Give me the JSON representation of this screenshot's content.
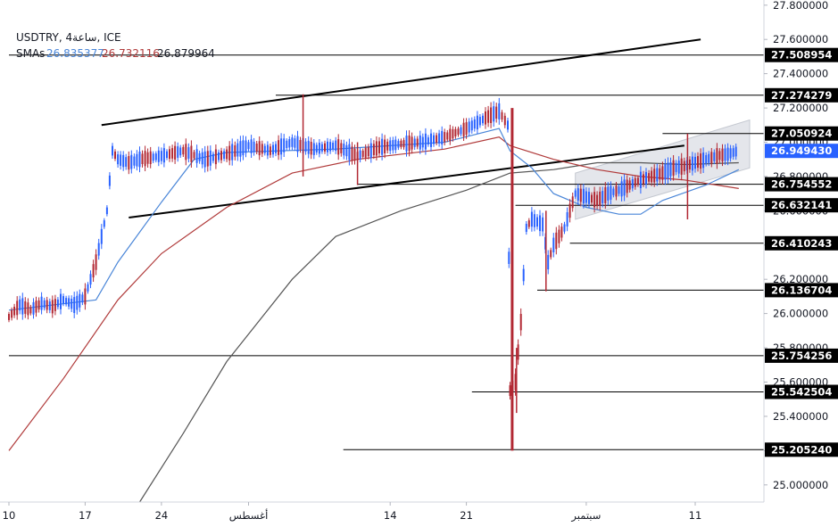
{
  "chart_data": {
    "type": "line",
    "instrument": "USDTRY, 4ساعة, ICE",
    "sma_label": "SMAs",
    "sma_values": [
      {
        "value": "26.835377",
        "color": "#4a86d8"
      },
      {
        "value": "26.732116",
        "color": "#b03a3a"
      },
      {
        "value": "26.879964",
        "color": "#131722"
      }
    ],
    "y_axis": {
      "range": [
        24.9,
        27.83
      ],
      "ticks": [
        "27.800000",
        "27.600000",
        "27.400000",
        "27.200000",
        "27.000000",
        "26.800000",
        "26.600000",
        "26.400000",
        "26.200000",
        "26.000000",
        "25.800000",
        "25.600000",
        "25.400000",
        "25.200000",
        "25.000000"
      ]
    },
    "x_axis": {
      "ticks": [
        {
          "label": "10",
          "t": 0
        },
        {
          "label": "17",
          "t": 7
        },
        {
          "label": "24",
          "t": 14
        },
        {
          "label": "أغسطس",
          "t": 22
        },
        {
          "label": "14",
          "t": 35
        },
        {
          "label": "21",
          "t": 42
        },
        {
          "label": "سبتمبر",
          "t": 53
        },
        {
          "label": "11",
          "t": 63
        }
      ],
      "range": [
        0,
        68
      ]
    },
    "levels": [
      {
        "value": 27.508954,
        "label": "27.508954",
        "from": 0,
        "color": "#000000"
      },
      {
        "value": 27.274279,
        "label": "27.274279",
        "from": 24.5,
        "color": "#000000"
      },
      {
        "value": 27.050924,
        "label": "27.050924",
        "from": 60,
        "color": "#000000"
      },
      {
        "value": 26.94943,
        "label": "26.949430",
        "from": 67,
        "color": "#2962ff"
      },
      {
        "value": 26.754552,
        "label": "26.754552",
        "from": 32,
        "color": "#000000"
      },
      {
        "value": 26.632141,
        "label": "26.632141",
        "from": 46.5,
        "color": "#000000"
      },
      {
        "value": 26.410243,
        "label": "26.410243",
        "from": 51.5,
        "color": "#000000"
      },
      {
        "value": 26.136704,
        "label": "26.136704",
        "from": 48.5,
        "color": "#000000"
      },
      {
        "value": 25.754256,
        "label": "25.754256",
        "from": 0,
        "color": "#000000"
      },
      {
        "value": 25.542504,
        "label": "25.542504",
        "from": 42.5,
        "color": "#000000"
      },
      {
        "value": 25.20524,
        "label": "25.205240",
        "from": 30.7,
        "color": "#000000"
      }
    ],
    "trendlines": [
      {
        "from": [
          8.5,
          27.1
        ],
        "to": [
          63.5,
          27.6
        ],
        "color": "#000000"
      },
      {
        "from": [
          11,
          26.56
        ],
        "to": [
          62,
          26.98
        ],
        "color": "#000000"
      }
    ],
    "channel": {
      "upper": [
        [
          52,
          26.82
        ],
        [
          68,
          27.13
        ]
      ],
      "lower": [
        [
          52,
          26.55
        ],
        [
          68,
          26.85
        ]
      ]
    },
    "price": {
      "color": "#2962ff",
      "down_color": "#b22833",
      "points": [
        [
          0,
          25.98
        ],
        [
          1,
          26.05
        ],
        [
          2,
          26.02
        ],
        [
          3,
          26.06
        ],
        [
          4,
          26.04
        ],
        [
          5,
          26.08
        ],
        [
          6,
          26.05
        ],
        [
          7,
          26.1
        ],
        [
          8,
          26.3
        ],
        [
          9,
          26.6
        ],
        [
          9.5,
          26.95
        ],
        [
          10,
          26.9
        ],
        [
          11,
          26.88
        ],
        [
          12,
          26.9
        ],
        [
          14,
          26.92
        ],
        [
          16,
          26.95
        ],
        [
          18,
          26.9
        ],
        [
          20,
          26.93
        ],
        [
          22,
          26.98
        ],
        [
          24,
          26.95
        ],
        [
          26,
          27.0
        ],
        [
          28,
          26.96
        ],
        [
          30,
          26.98
        ],
        [
          32,
          26.92
        ],
        [
          34,
          26.97
        ],
        [
          36,
          26.99
        ],
        [
          38,
          27.0
        ],
        [
          40,
          27.03
        ],
        [
          42,
          27.08
        ],
        [
          44,
          27.15
        ],
        [
          45,
          27.18
        ],
        [
          45.8,
          27.1
        ],
        [
          46,
          25.55
        ],
        [
          46.5,
          25.6
        ],
        [
          47,
          25.95
        ],
        [
          47.5,
          26.5
        ],
        [
          48,
          26.55
        ],
        [
          49,
          26.52
        ],
        [
          49.5,
          26.3
        ],
        [
          50,
          26.4
        ],
        [
          51,
          26.5
        ],
        [
          52,
          26.7
        ],
        [
          53,
          26.68
        ],
        [
          54,
          26.66
        ],
        [
          55,
          26.7
        ],
        [
          56,
          26.72
        ],
        [
          57,
          26.75
        ],
        [
          58,
          26.78
        ],
        [
          59,
          26.8
        ],
        [
          60,
          26.82
        ],
        [
          61,
          26.85
        ],
        [
          62,
          26.86
        ],
        [
          63,
          26.88
        ],
        [
          64,
          26.9
        ],
        [
          65,
          26.92
        ],
        [
          66,
          26.93
        ],
        [
          67,
          26.95
        ]
      ],
      "spikes": [
        {
          "t": 46.2,
          "high": 27.2,
          "low": 25.2
        },
        {
          "t": 46.6,
          "high": 25.8,
          "low": 25.42
        },
        {
          "t": 49.3,
          "high": 26.6,
          "low": 26.13
        },
        {
          "t": 62.3,
          "high": 27.05,
          "low": 26.55
        },
        {
          "t": 27,
          "high": 27.28,
          "low": 26.8
        },
        {
          "t": 32,
          "high": 27.0,
          "low": 26.75
        }
      ]
    },
    "sma_fast": {
      "color": "#4a86d8",
      "points": [
        [
          0,
          26.02
        ],
        [
          8,
          26.08
        ],
        [
          10,
          26.3
        ],
        [
          14,
          26.65
        ],
        [
          17,
          26.9
        ],
        [
          20,
          26.94
        ],
        [
          30,
          26.96
        ],
        [
          40,
          27.0
        ],
        [
          45,
          27.08
        ],
        [
          46,
          26.95
        ],
        [
          48,
          26.85
        ],
        [
          50,
          26.7
        ],
        [
          53,
          26.62
        ],
        [
          56,
          26.58
        ],
        [
          58,
          26.58
        ],
        [
          60,
          26.66
        ],
        [
          64,
          26.75
        ],
        [
          67,
          26.84
        ]
      ]
    },
    "sma_mid": {
      "color": "#b03a3a",
      "points": [
        [
          0,
          25.2
        ],
        [
          5,
          25.62
        ],
        [
          10,
          26.08
        ],
        [
          14,
          26.35
        ],
        [
          20,
          26.62
        ],
        [
          26,
          26.82
        ],
        [
          32,
          26.9
        ],
        [
          40,
          26.96
        ],
        [
          45,
          27.03
        ],
        [
          46,
          26.98
        ],
        [
          50,
          26.9
        ],
        [
          54,
          26.84
        ],
        [
          58,
          26.8
        ],
        [
          62,
          26.78
        ],
        [
          67,
          26.73
        ]
      ]
    },
    "sma_slow": {
      "color": "#555555",
      "points": [
        [
          12,
          24.9
        ],
        [
          16,
          25.3
        ],
        [
          20,
          25.72
        ],
        [
          26,
          26.2
        ],
        [
          30,
          26.45
        ],
        [
          36,
          26.6
        ],
        [
          42,
          26.72
        ],
        [
          46,
          26.82
        ],
        [
          50,
          26.84
        ],
        [
          54,
          26.88
        ],
        [
          58,
          26.88
        ],
        [
          62,
          26.87
        ],
        [
          67,
          26.88
        ]
      ]
    }
  }
}
